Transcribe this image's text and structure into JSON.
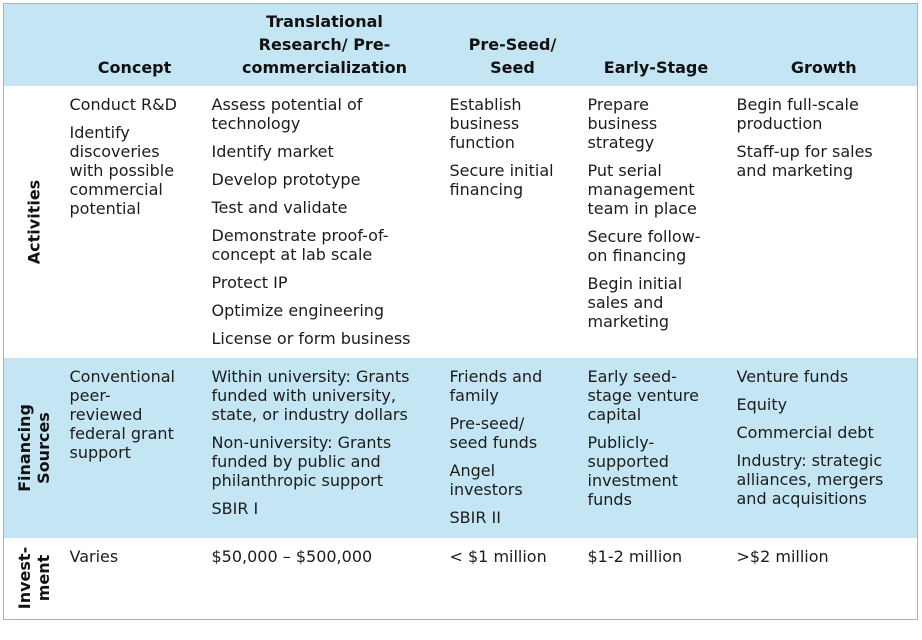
{
  "table": {
    "headers": [
      "",
      "Concept",
      "Translational\nResearch/ Pre-\ncommercialization",
      "Pre-Seed/\nSeed",
      "Early-Stage",
      "Growth"
    ],
    "rows": [
      {
        "label": "Activities",
        "cells": [
          [
            "Conduct R&D",
            "Identify\ndiscoveries\nwith possible\ncommercial\npotential"
          ],
          [
            "Assess potential of\ntechnology",
            "Identify market",
            "Develop prototype",
            "Test and validate",
            "Demonstrate proof-of-\nconcept at lab scale",
            "Protect IP",
            "Optimize engineering",
            "License or form business"
          ],
          [
            "Establish\nbusiness\nfunction",
            "Secure initial\nfinancing"
          ],
          [
            "Prepare\nbusiness\nstrategy",
            "Put serial\nmanagement\nteam in place",
            "Secure follow-\non financing",
            "Begin initial\nsales and\nmarketing"
          ],
          [
            "Begin full-scale\nproduction",
            "Staff-up for sales\nand marketing"
          ]
        ]
      },
      {
        "label": "Financing\nSources",
        "cells": [
          [
            "Conventional\npeer-\nreviewed\nfederal grant\nsupport"
          ],
          [
            "Within university: Grants\nfunded with university,\nstate, or industry dollars",
            "Non-university: Grants\nfunded by public and\nphilanthropic support",
            "SBIR I"
          ],
          [
            "Friends and\nfamily",
            "Pre-seed/\nseed funds",
            "Angel\ninvestors",
            "SBIR II"
          ],
          [
            "Early seed-\nstage venture\ncapital",
            "Publicly-\nsupported\ninvestment\nfunds"
          ],
          [
            "Venture funds",
            "Equity",
            "Commercial debt",
            "Industry: strategic\nalliances, mergers\nand acquisitions"
          ]
        ]
      },
      {
        "label": "Invest-\nment",
        "cells": [
          [
            "Varies"
          ],
          [
            "$50,000 – $500,000"
          ],
          [
            "< $1 million"
          ],
          [
            "$1-2 million"
          ],
          [
            ">$2 million"
          ]
        ]
      }
    ]
  }
}
